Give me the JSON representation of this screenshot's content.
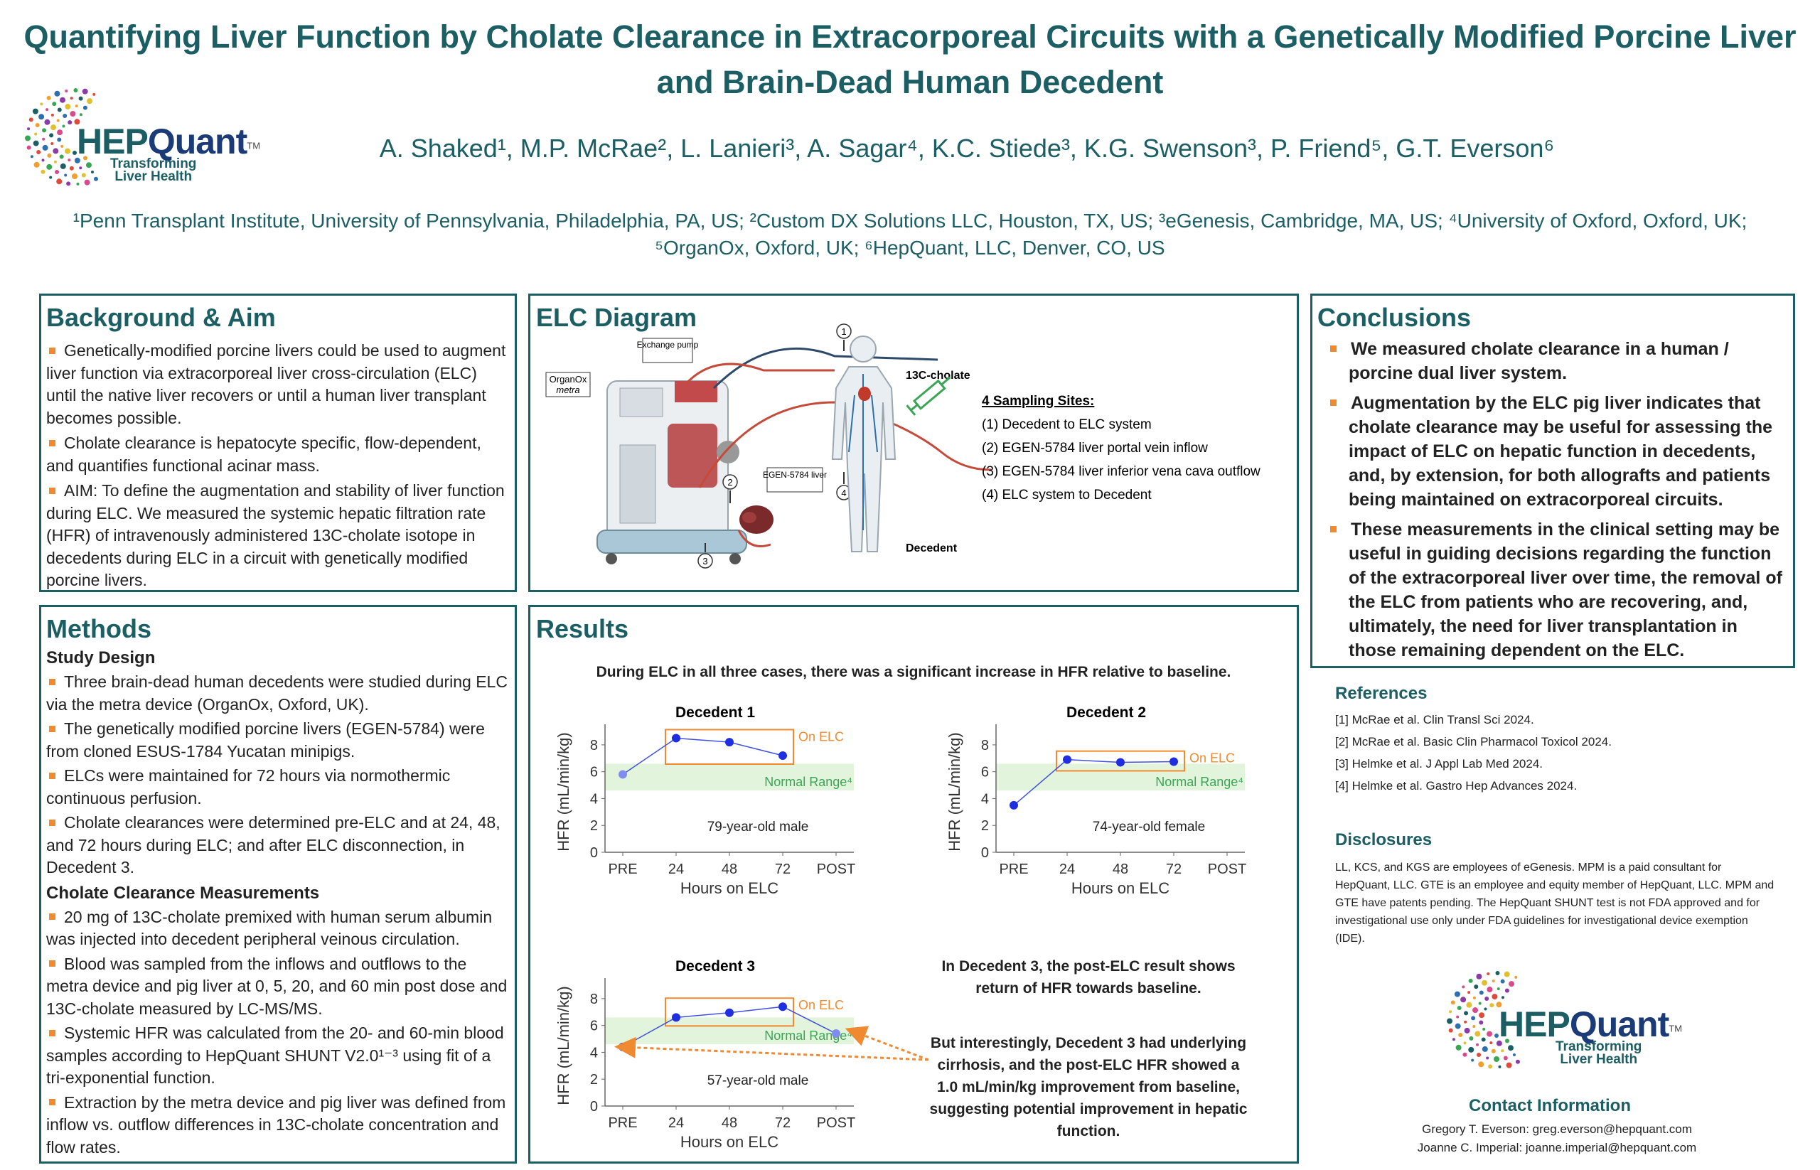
{
  "title_line1": "Quantifying Liver Function by Cholate Clearance in Extracorporeal Circuits with a Genetically Modified Porcine Liver",
  "title_line2": "and Brain-Dead Human Decedent",
  "authors": "A. Shaked¹, M.P. McRae², L. Lanieri³, A. Sagar⁴, K.C. Stiede³, K.G. Swenson³, P. Friend⁵, G.T. Everson⁶",
  "affiliations": "¹Penn Transplant Institute, University of Pennsylvania, Philadelphia, PA, US; ²Custom DX Solutions LLC, Houston, TX, US; ³eGenesis, Cambridge, MA, US; ⁴University of Oxford, Oxford, UK; ⁵OrganOx, Oxford, UK; ⁶HepQuant, LLC, Denver, CO, US",
  "logo": {
    "hep": "HEP",
    "quant": "Quant",
    "tm": "TM",
    "tag1": "Transforming",
    "tag2": "Liver Health"
  },
  "background": {
    "heading": "Background & Aim",
    "bullets": [
      "Genetically-modified porcine livers could be used to augment liver function via extracorporeal liver cross-circulation (ELC) until the native liver recovers or until a human liver transplant becomes possible.",
      "Cholate clearance is hepatocyte specific, flow-dependent, and quantifies functional acinar mass.",
      "AIM: To define the augmentation and stability of liver function during ELC. We measured the systemic hepatic filtration rate (HFR) of intravenously administered 13C-cholate isotope in decedents during ELC in a circuit with genetically modified porcine livers."
    ]
  },
  "elc": {
    "heading": "ELC Diagram",
    "labels": {
      "exchange": "Exchange pump",
      "organox": "OrganOx",
      "metra": "metra",
      "egen": "EGEN-5784 liver",
      "cholate": "13C-cholate",
      "decedent": "Decedent"
    },
    "sites_title": "4 Sampling Sites:",
    "sites": [
      "(1) Decedent to ELC system",
      "(2) EGEN-5784 liver portal vein inflow",
      "(3) EGEN-5784 liver inferior vena cava outflow",
      "(4) ELC system to Decedent"
    ],
    "site_marks": [
      "1",
      "2",
      "3",
      "4"
    ]
  },
  "conclusions": {
    "heading": "Conclusions",
    "bullets": [
      "We measured cholate clearance in a human / porcine dual liver system.",
      "Augmentation by the ELC pig liver indicates that cholate clearance may be useful for assessing the impact of ELC on hepatic function in decedents, and, by extension, for both allografts and patients being maintained on extracorporeal circuits.",
      "These measurements in the clinical setting may be useful in guiding decisions regarding the function of the extracorporeal liver over time, the removal of the ELC from patients who are recovering, and, ultimately, the need for liver transplantation in those remaining dependent on the ELC."
    ]
  },
  "references": {
    "heading": "References",
    "items": [
      "[1] McRae et al. Clin Transl Sci 2024.",
      "[2] McRae et al. Basic Clin Pharmacol Toxicol 2024.",
      "[3] Helmke et al. J Appl Lab Med 2024.",
      "[4] Helmke et al. Gastro Hep Advances 2024."
    ]
  },
  "disclosures": {
    "heading": "Disclosures",
    "text": "LL, KCS, and KGS are employees of eGenesis. MPM is a  paid consultant for HepQuant, LLC. GTE is an employee and equity member of HepQuant, LLC. MPM and GTE have patents pending. The HepQuant SHUNT test is not FDA approved and for investigational use only under FDA guidelines for investigational device exemption (IDE)."
  },
  "contact": {
    "heading": "Contact Information",
    "lines": [
      "Gregory T. Everson: greg.everson@hepquant.com",
      "Joanne C. Imperial: joanne.imperial@hepquant.com"
    ]
  },
  "methods": {
    "heading": "Methods",
    "sub1": "Study Design",
    "study_bullets": [
      "Three brain-dead human decedents were studied during ELC via the metra device (OrganOx, Oxford, UK).",
      "The genetically modified porcine livers (EGEN-5784) were from cloned ESUS-1784 Yucatan minipigs.",
      "ELCs were maintained for 72 hours via normothermic continuous perfusion.",
      "Cholate clearances were determined pre-ELC and at 24, 48, and 72 hours during ELC; and after ELC disconnection, in Decedent 3."
    ],
    "sub2": "Cholate Clearance Measurements",
    "meas_bullets": [
      "20 mg of 13C-cholate premixed with human serum albumin was injected into decedent peripheral veinous circulation.",
      "Blood was sampled from the inflows and outflows to the metra device and pig liver at 0, 5, 20, and 60 min post dose and 13C-cholate measured by LC-MS/MS.",
      "Systemic HFR was calculated from the 20- and 60-min blood samples according to HepQuant SHUNT V2.0¹⁻³ using fit of a tri-exponential function.",
      "Extraction by the metra device and pig liver was defined from inflow vs. outflow differences in 13C-cholate concentration and flow rates."
    ]
  },
  "results": {
    "heading": "Results",
    "intro": "During ELC in all three cases, there was a significant increase in HFR relative to baseline.",
    "note1": "In Decedent 3, the post-ELC result shows return of HFR towards baseline.",
    "note2": "But interestingly, Decedent 3 had underlying cirrhosis, and the post-ELC HFR showed a 1.0 mL/min/kg improvement from baseline, suggesting potential improvement in hepatic function."
  },
  "chart_data": [
    {
      "type": "scatter",
      "title": "Decedent 1",
      "annotation": "79-year-old male",
      "categories": [
        "PRE",
        "24",
        "48",
        "72",
        "POST"
      ],
      "series": [
        {
          "values": [
            5.8,
            8.5,
            8.2,
            7.2,
            null
          ]
        }
      ],
      "on_elc_label": "On ELC",
      "normal_label": "Normal Range⁴",
      "normal_range": [
        4.6,
        6.6
      ],
      "xlabel": "Hours on ELC",
      "ylabel": "HFR (mL/min/kg)",
      "yticks": [
        "0",
        "2",
        "4",
        "6",
        "8"
      ],
      "ylim": [
        0,
        9
      ]
    },
    {
      "type": "scatter",
      "title": "Decedent 2",
      "annotation": "74-year-old female",
      "categories": [
        "PRE",
        "24",
        "48",
        "72",
        "POST"
      ],
      "series": [
        {
          "values": [
            3.5,
            6.9,
            6.7,
            6.75,
            null
          ]
        }
      ],
      "on_elc_label": "On ELC",
      "normal_label": "Normal Range⁴",
      "normal_range": [
        4.6,
        6.6
      ],
      "xlabel": "Hours on ELC",
      "ylabel": "HFR (mL/min/kg)",
      "yticks": [
        "0",
        "2",
        "4",
        "6",
        "8"
      ],
      "ylim": [
        0,
        9
      ]
    },
    {
      "type": "scatter",
      "title": "Decedent 3",
      "annotation": "57-year-old male",
      "categories": [
        "PRE",
        "24",
        "48",
        "72",
        "POST"
      ],
      "series": [
        {
          "values": [
            4.4,
            6.6,
            6.95,
            7.4,
            5.4
          ]
        }
      ],
      "on_elc_label": "On ELC",
      "normal_label": "Normal Range⁴",
      "normal_range": [
        4.6,
        6.6
      ],
      "xlabel": "Hours on ELC",
      "ylabel": "HFR (mL/min/kg)",
      "yticks": [
        "0",
        "2",
        "4",
        "6",
        "8"
      ],
      "ylim": [
        0,
        9
      ]
    }
  ]
}
